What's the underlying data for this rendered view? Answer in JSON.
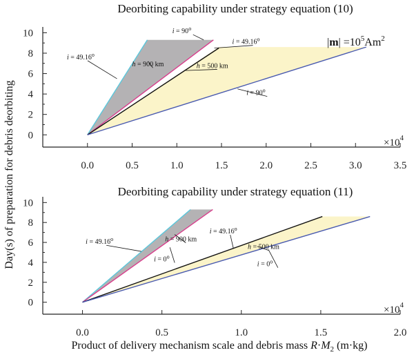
{
  "figure": {
    "ylabel": "Day(s) of preparation for debris deorbiting",
    "xlabel_main": "Product of delivery mechanism scale and debris mass ",
    "xlabel_var": "R",
    "xlabel_dot": "·",
    "xlabel_m": "M",
    "xlabel_sub": "2",
    "xlabel_unit": " (m·kg)"
  },
  "colors": {
    "cyan": "#5bc8dc",
    "magenta": "#d93d8c",
    "black": "#111111",
    "blue": "#4a5bb0",
    "gray_fill": "#b4b2b4",
    "yellow_fill": "#fbf4c9"
  },
  "chart_data": [
    {
      "type": "line",
      "title": "Deorbiting capability under strategy equation (10)",
      "xlim": [
        -0.5,
        3.5
      ],
      "ylim": [
        -1.2,
        10.3
      ],
      "xticks": [
        "0.0",
        "0.5",
        "1.0",
        "1.5",
        "2.0",
        "2.5",
        "3.0",
        "3.5"
      ],
      "xtick_values": [
        0,
        0.5,
        1.0,
        1.5,
        2.0,
        2.5,
        3.0,
        3.5
      ],
      "yticks": [
        "0",
        "2",
        "4",
        "6",
        "8",
        "10"
      ],
      "ytick_values": [
        0,
        2,
        4,
        6,
        8,
        10
      ],
      "x_multiplier": "×10",
      "x_multiplier_exp": "4",
      "moment_label": {
        "lhs": "|",
        "bold": "m",
        "rhs": "| =10",
        "exp": "5",
        "unit": "Am",
        "unit_exp": "2"
      },
      "series": [
        {
          "color_key": "cyan",
          "x": [
            0,
            0.67
          ],
          "y": [
            0,
            9.3
          ]
        },
        {
          "color_key": "magenta",
          "x": [
            0,
            1.41
          ],
          "y": [
            0,
            9.3
          ]
        },
        {
          "color_key": "black",
          "x": [
            0,
            1.47
          ],
          "y": [
            0,
            8.5
          ]
        },
        {
          "color_key": "blue",
          "x": [
            0,
            3.12
          ],
          "y": [
            0,
            8.6
          ]
        }
      ],
      "fills": [
        {
          "color_key": "gray_fill",
          "x": [
            0,
            0.67,
            1.41
          ],
          "y": [
            0,
            9.3,
            9.3
          ]
        },
        {
          "color_key": "yellow_fill",
          "x": [
            0,
            1.47,
            3.12
          ],
          "y": [
            0,
            8.6,
            8.6
          ]
        }
      ],
      "annotations": [
        {
          "parts": [
            [
              "i",
              "it"
            ],
            [
              " = 90",
              ""
            ],
            [
              "o",
              "sup"
            ]
          ],
          "x": 0.95,
          "y": 9.95,
          "lx": 1.3,
          "ly": 9.3
        },
        {
          "parts": [
            [
              "i",
              "it"
            ],
            [
              " = 49.16",
              ""
            ],
            [
              "o",
              "sup"
            ]
          ],
          "x": 1.62,
          "y": 8.9,
          "lx": 1.42,
          "ly": 8.5
        },
        {
          "parts": [
            [
              "i",
              "it"
            ],
            [
              " = 49.16",
              ""
            ],
            [
              "o",
              "sup"
            ]
          ],
          "x": -0.23,
          "y": 7.4,
          "lx": 0.33,
          "ly": 5.5
        },
        {
          "parts": [
            [
              "h",
              "it"
            ],
            [
              " = 900 km",
              ""
            ]
          ],
          "x": 0.5,
          "y": 6.7,
          "lx": 0.68,
          "ly": 7.2
        },
        {
          "parts": [
            [
              "h",
              "it"
            ],
            [
              " = 500 km",
              ""
            ]
          ],
          "x": 1.22,
          "y": 6.55,
          "lx": 1.1,
          "ly": 6.3
        },
        {
          "parts": [
            [
              "i",
              "it"
            ],
            [
              " = 90",
              ""
            ],
            [
              "o",
              "sup"
            ]
          ],
          "x": 1.78,
          "y": 3.9,
          "lx": 1.68,
          "ly": 4.5
        }
      ]
    },
    {
      "type": "line",
      "title": "Deorbiting capability under strategy equation (11)",
      "xlim": [
        -0.25,
        2.0
      ],
      "ylim": [
        -1.2,
        10.3
      ],
      "xticks": [
        "0.0",
        "0.5",
        "1.0",
        "1.5",
        "2.0"
      ],
      "xtick_values": [
        0,
        0.5,
        1.0,
        1.5,
        2.0
      ],
      "yticks": [
        "0",
        "2",
        "4",
        "6",
        "8",
        "10"
      ],
      "ytick_values": [
        0,
        2,
        4,
        6,
        8,
        10
      ],
      "x_multiplier": "×10",
      "x_multiplier_exp": "4",
      "series": [
        {
          "color_key": "cyan",
          "x": [
            0,
            0.68
          ],
          "y": [
            0,
            9.3
          ]
        },
        {
          "color_key": "magenta",
          "x": [
            0,
            0.82
          ],
          "y": [
            0,
            9.3
          ]
        },
        {
          "color_key": "black",
          "x": [
            0,
            1.51
          ],
          "y": [
            0,
            8.6
          ]
        },
        {
          "color_key": "blue",
          "x": [
            0,
            1.81
          ],
          "y": [
            0,
            8.6
          ]
        }
      ],
      "fills": [
        {
          "color_key": "gray_fill",
          "x": [
            0,
            0.68,
            0.82
          ],
          "y": [
            0,
            9.3,
            9.3
          ]
        },
        {
          "color_key": "yellow_fill",
          "x": [
            0,
            1.51,
            1.81
          ],
          "y": [
            0,
            8.6,
            8.6
          ]
        }
      ],
      "annotations": [
        {
          "parts": [
            [
              "i",
              "it"
            ],
            [
              " = 49.16",
              ""
            ],
            [
              "o",
              "sup"
            ]
          ],
          "x": 0.02,
          "y": 5.85,
          "lx": 0.37,
          "ly": 5.1
        },
        {
          "parts": [
            [
              "h",
              "it"
            ],
            [
              " = 900 km",
              ""
            ]
          ],
          "x": 0.52,
          "y": 6.1,
          "lx": 0.58,
          "ly": 6.8
        },
        {
          "parts": [
            [
              "i",
              "it"
            ],
            [
              " = 0",
              ""
            ],
            [
              "o",
              "sup"
            ]
          ],
          "x": 0.45,
          "y": 4.1,
          "lx": 0.55,
          "ly": 5.5
        },
        {
          "parts": [
            [
              "i",
              "it"
            ],
            [
              " = 49.16",
              ""
            ],
            [
              "o",
              "sup"
            ]
          ],
          "x": 0.8,
          "y": 6.9,
          "lx": 0.95,
          "ly": 5.4
        },
        {
          "parts": [
            [
              "h",
              "it"
            ],
            [
              " = 500 km",
              ""
            ]
          ],
          "x": 1.04,
          "y": 5.35,
          "lx": 1.1,
          "ly": 5.6
        },
        {
          "parts": [
            [
              "i",
              "it"
            ],
            [
              " = 0",
              ""
            ],
            [
              "o",
              "sup"
            ]
          ],
          "x": 1.1,
          "y": 3.6,
          "lx": 1.17,
          "ly": 5.3
        }
      ]
    }
  ]
}
